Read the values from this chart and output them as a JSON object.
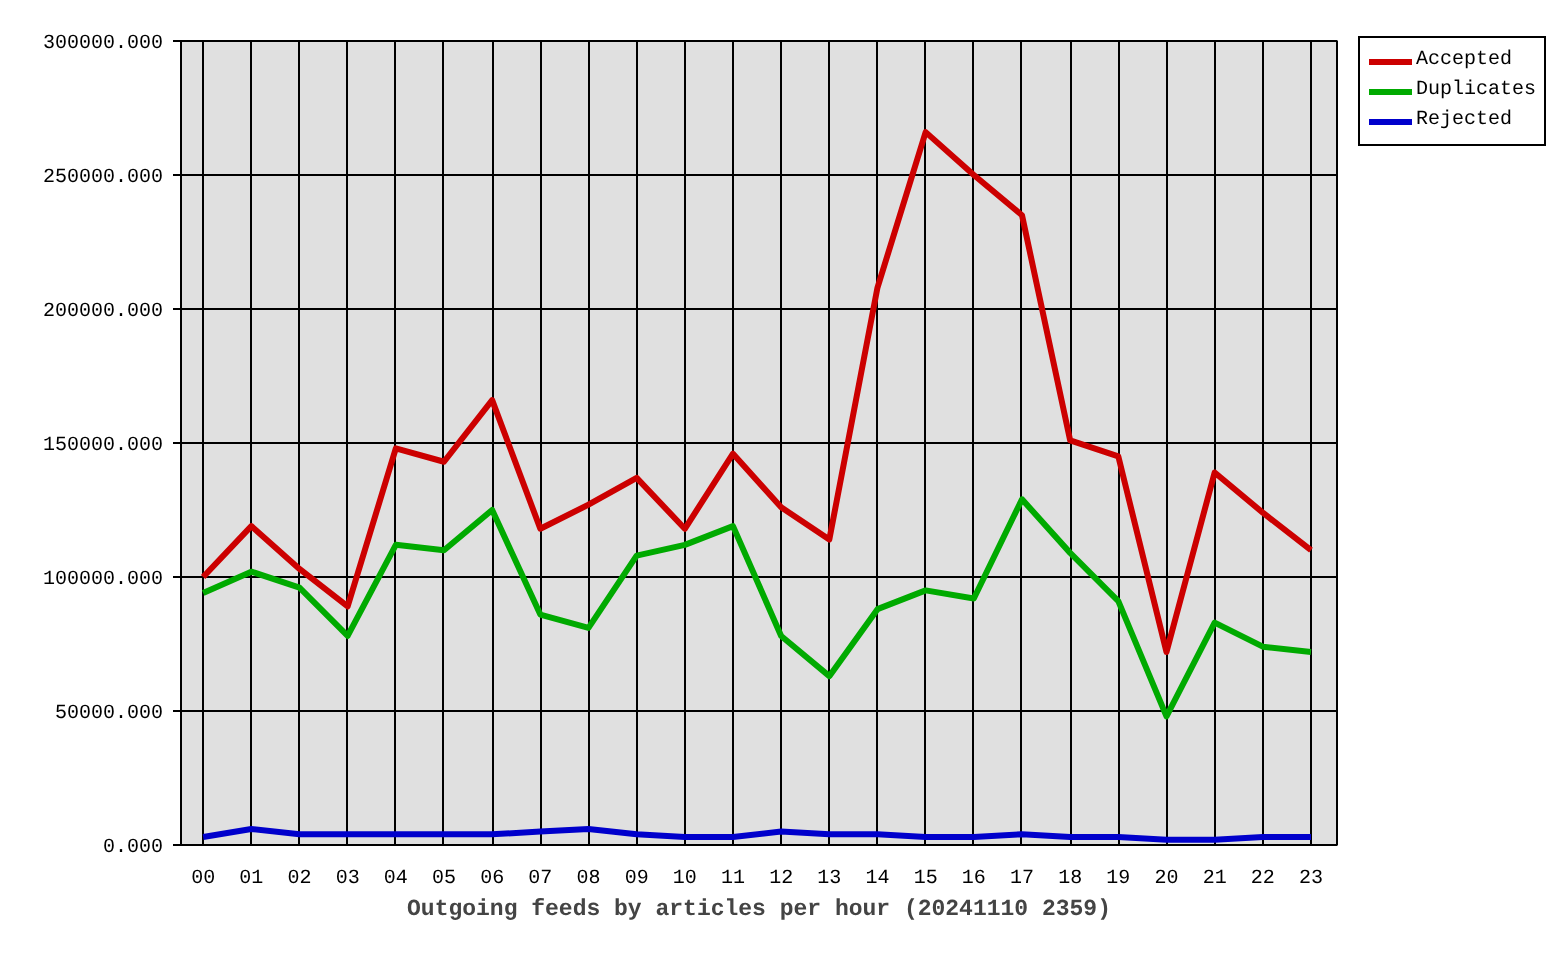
{
  "chart_data": {
    "type": "line",
    "xlabel": "Outgoing feeds by articles per hour (20241110 2359)",
    "categories": [
      "00",
      "01",
      "02",
      "03",
      "04",
      "05",
      "06",
      "07",
      "08",
      "09",
      "10",
      "11",
      "12",
      "13",
      "14",
      "15",
      "16",
      "17",
      "18",
      "19",
      "20",
      "21",
      "22",
      "23"
    ],
    "series": [
      {
        "name": "Accepted",
        "color": "#cc0000",
        "values": [
          100000,
          119000,
          103000,
          89000,
          148000,
          143000,
          166000,
          118000,
          127000,
          137000,
          118000,
          146000,
          126000,
          114000,
          208000,
          266000,
          250000,
          235000,
          151000,
          145000,
          72000,
          139000,
          124000,
          110000
        ]
      },
      {
        "name": "Duplicates",
        "color": "#00aa00",
        "values": [
          94000,
          102000,
          96000,
          78000,
          112000,
          110000,
          125000,
          86000,
          81000,
          108000,
          112000,
          119000,
          78000,
          63000,
          88000,
          95000,
          92000,
          129000,
          109000,
          91000,
          48000,
          83000,
          74000,
          72000
        ]
      },
      {
        "name": "Rejected",
        "color": "#0000cc",
        "values": [
          3000,
          6000,
          4000,
          4000,
          4000,
          4000,
          4000,
          5000,
          6000,
          4000,
          3000,
          3000,
          5000,
          4000,
          4000,
          3000,
          3000,
          4000,
          3000,
          3000,
          2000,
          2000,
          3000,
          3000
        ]
      }
    ],
    "ylim": [
      0,
      300000
    ],
    "yticks": [
      {
        "value": 0,
        "label": "0.000"
      },
      {
        "value": 50000,
        "label": "50000.000"
      },
      {
        "value": 100000,
        "label": "100000.000"
      },
      {
        "value": 150000,
        "label": "150000.000"
      },
      {
        "value": 200000,
        "label": "200000.000"
      },
      {
        "value": 250000,
        "label": "250000.000"
      },
      {
        "value": 300000,
        "label": "300000.000"
      }
    ],
    "grid": true,
    "legend": "top right"
  }
}
